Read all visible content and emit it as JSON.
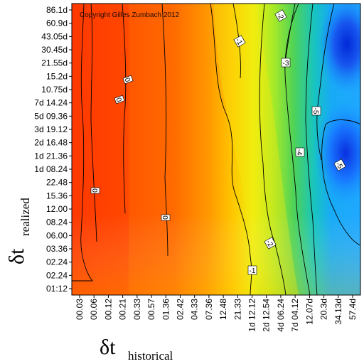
{
  "chart_data": {
    "type": "heatmap",
    "copyright": "Copyright Gilles Zumbach 2012",
    "xlabel": {
      "symbol": "δt",
      "subscript": "historical"
    },
    "ylabel": {
      "symbol": "δt",
      "subscript": "realized"
    },
    "x_categories": [
      "00.03",
      "00.06",
      "00.12",
      "00.21",
      "00.33",
      "00.57",
      "01.36",
      "02.42",
      "04.33",
      "07.36",
      "12.48",
      "21.33",
      "1d 12.12",
      "2d 12.54",
      "4d 06.24",
      "7d 04.12",
      "12.07d",
      "20.3d",
      "34.13d",
      "57.4d"
    ],
    "y_categories": [
      "86.1d",
      "60.9d",
      "43.05d",
      "30.45d",
      "21.55d",
      "15.2d",
      "10.75d",
      "7d 14.24",
      "5d 09.36",
      "3d 19.12",
      "2d 16.48",
      "1d 21.36",
      "1d 08.24",
      "22.48",
      "15.36",
      "12.00",
      "08.24",
      "06.00",
      "03.36",
      "02.24",
      "02.24",
      "01:12"
    ],
    "colorscale": [
      "#ff3b00",
      "#ff7a00",
      "#ffb400",
      "#f4ee10",
      "#b8f020",
      "#6ad84a",
      "#18c8c8",
      "#18a0ff",
      "#0a40f0",
      "#001ab0"
    ],
    "contours": [
      {
        "label": "0"
      },
      {
        "label": "0"
      },
      {
        "label": "0"
      },
      {
        "label": "0"
      },
      {
        "label": "-1"
      },
      {
        "label": "-1"
      },
      {
        "label": "-2"
      },
      {
        "label": "-2"
      },
      {
        "label": "-3"
      },
      {
        "label": "-4"
      },
      {
        "label": "-5"
      },
      {
        "label": "-5"
      }
    ]
  }
}
